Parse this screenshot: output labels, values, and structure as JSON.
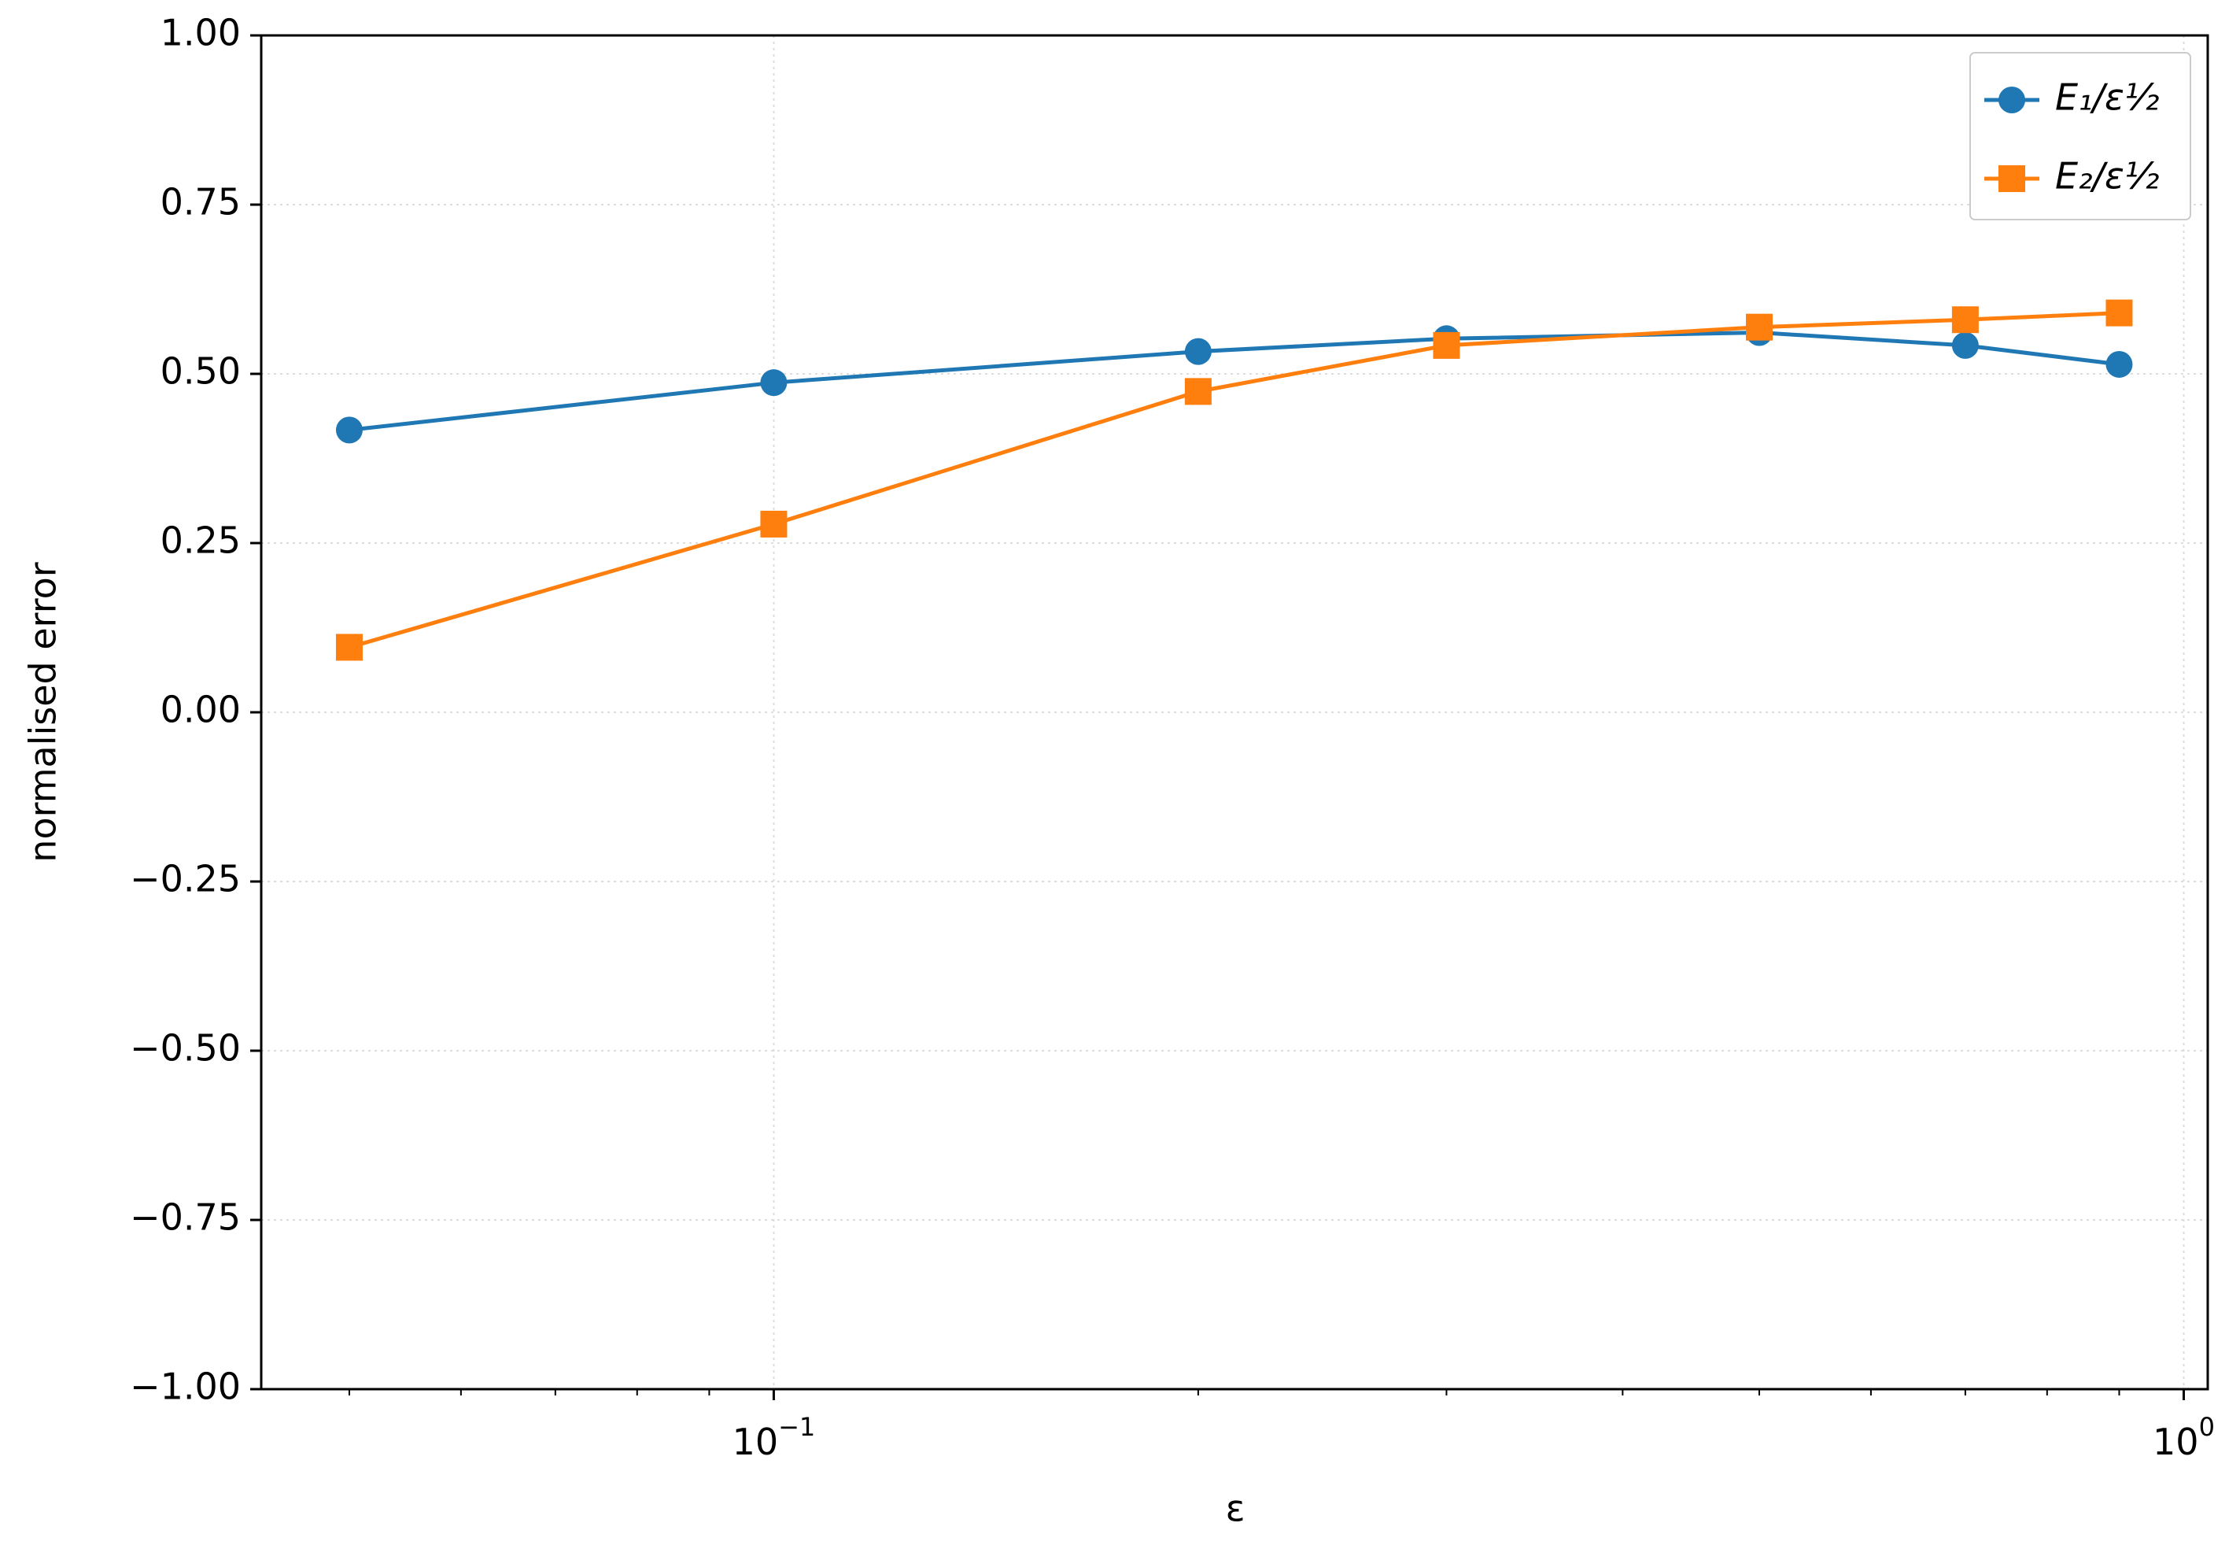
{
  "chart_data": {
    "type": "line",
    "xlabel": "ε",
    "ylabel": "normalised error",
    "x": [
      0.05,
      0.1,
      0.2,
      0.3,
      0.5,
      0.7,
      0.9
    ],
    "series": [
      {
        "name": "E₁/ε½",
        "color": "#1f77b4",
        "marker": "circle",
        "values": [
          0.417,
          0.487,
          0.533,
          0.552,
          0.561,
          0.542,
          0.514
        ]
      },
      {
        "name": "E₂/ε½",
        "color": "#ff7f0e",
        "marker": "square",
        "values": [
          0.096,
          0.278,
          0.474,
          0.542,
          0.569,
          0.58,
          0.59
        ]
      }
    ],
    "xscale": "log",
    "xlim": [
      0.0433,
      1.04
    ],
    "xticks": [
      {
        "value": 0.1,
        "label": "10",
        "exponent": "−1"
      },
      {
        "value": 1,
        "label": "10",
        "exponent": "0"
      }
    ],
    "xminorticks": [
      0.05,
      0.06,
      0.07,
      0.08,
      0.09,
      0.2,
      0.3,
      0.4,
      0.5,
      0.6,
      0.7,
      0.8,
      0.9
    ],
    "ylim": [
      -1,
      1
    ],
    "yticks": [
      {
        "value": -1,
        "label": "−1.00"
      },
      {
        "value": -0.75,
        "label": "−0.75"
      },
      {
        "value": -0.5,
        "label": "−0.50"
      },
      {
        "value": -0.25,
        "label": "−0.25"
      },
      {
        "value": 0,
        "label": "0.00"
      },
      {
        "value": 0.25,
        "label": "0.25"
      },
      {
        "value": 0.5,
        "label": "0.50"
      },
      {
        "value": 0.75,
        "label": "0.75"
      },
      {
        "value": 1,
        "label": "1.00"
      }
    ],
    "grid": true,
    "legend": "upper right"
  }
}
